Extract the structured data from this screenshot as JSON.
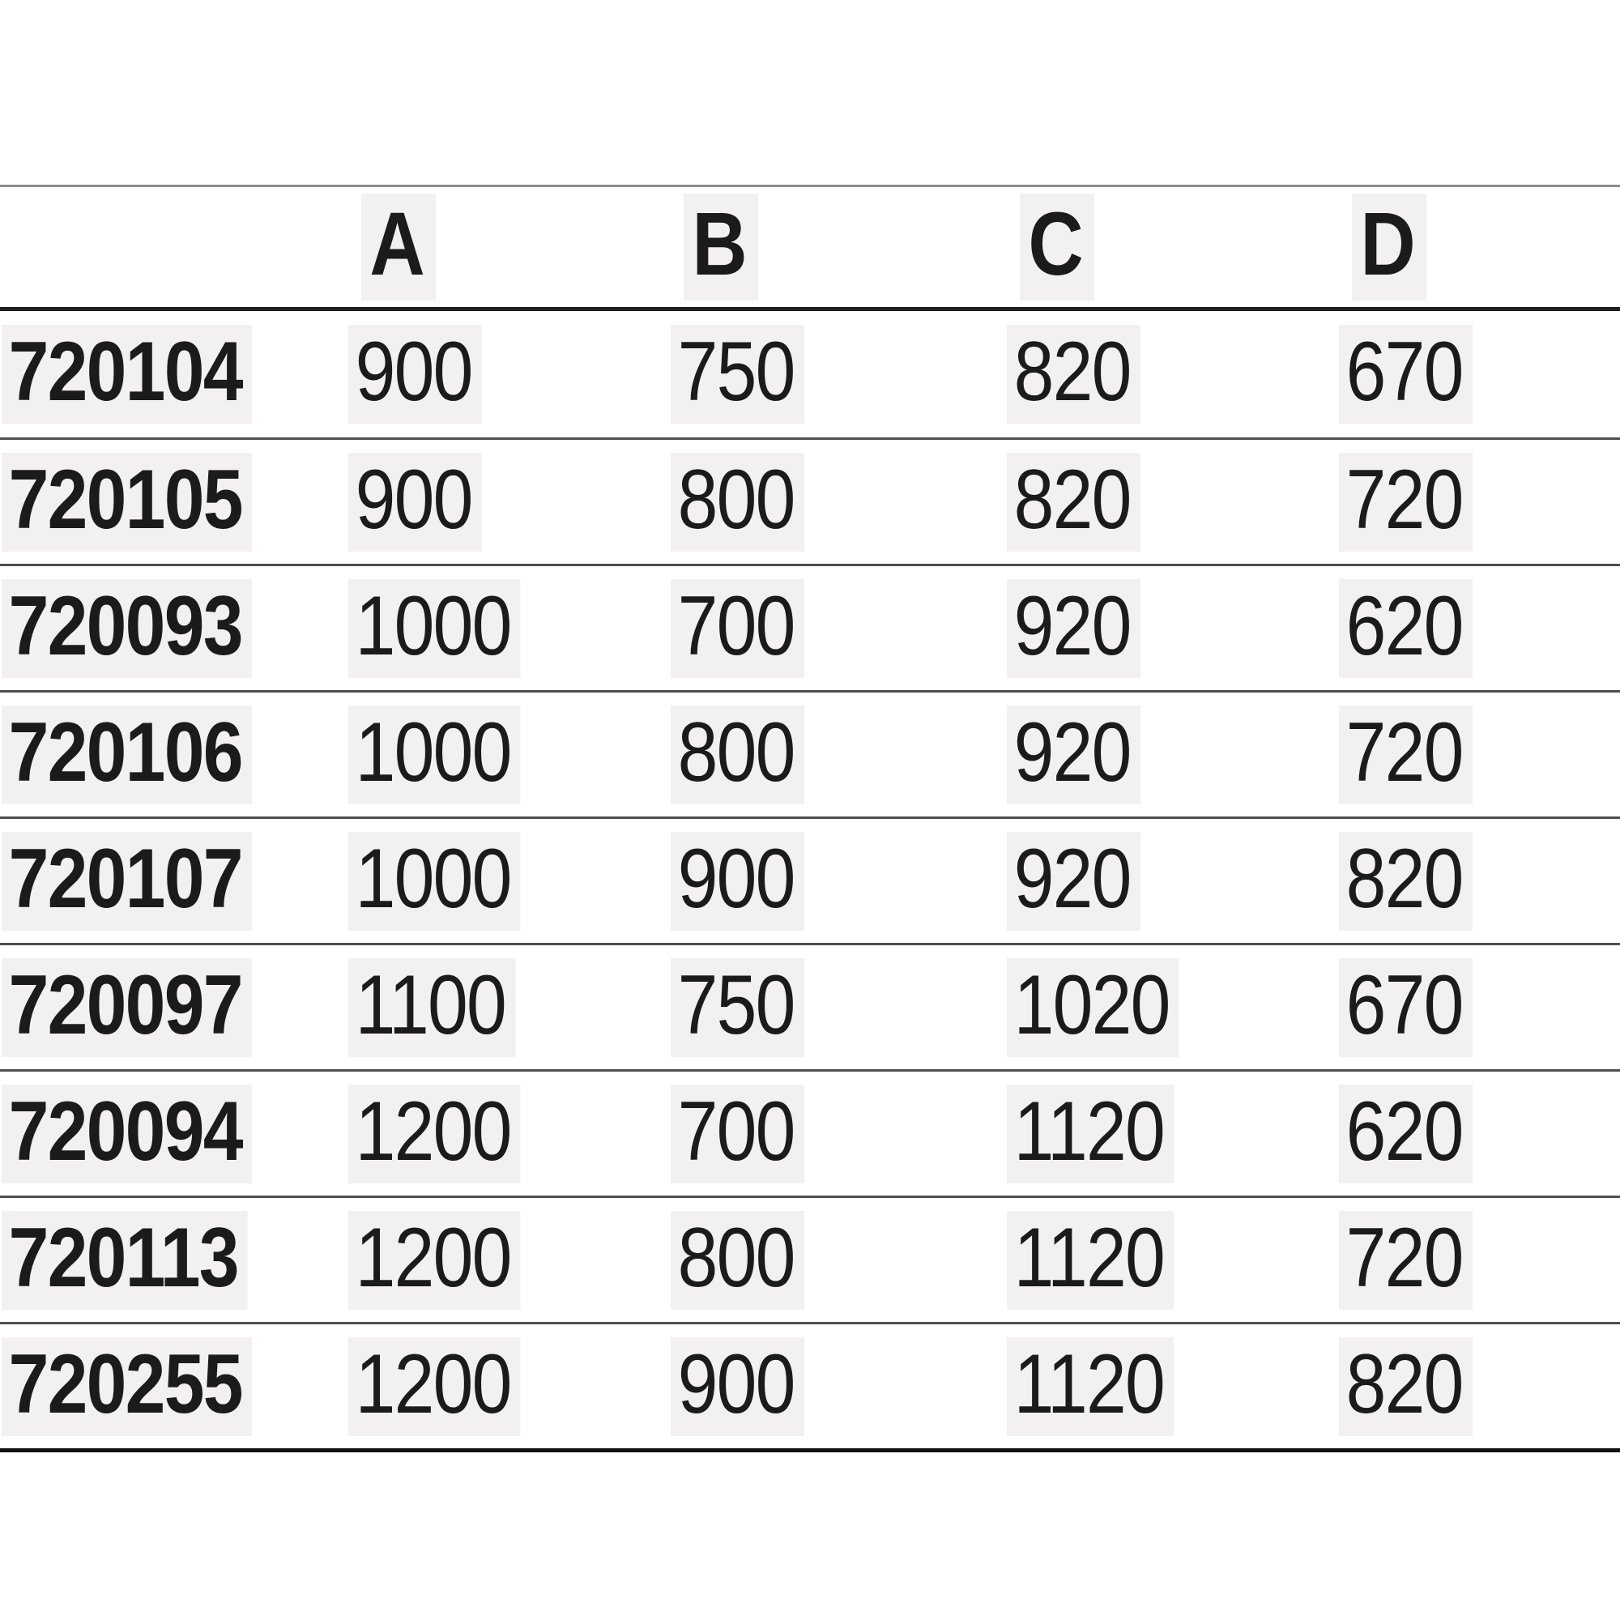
{
  "chart_data": {
    "type": "table",
    "title": "",
    "column_headers": [
      "A",
      "B",
      "C",
      "D"
    ],
    "row_header_label": "",
    "rows": [
      {
        "code": "720104",
        "values": [
          "900",
          "750",
          "820",
          "670"
        ]
      },
      {
        "code": "720105",
        "values": [
          "900",
          "800",
          "820",
          "720"
        ]
      },
      {
        "code": "720093",
        "values": [
          "1000",
          "700",
          "920",
          "620"
        ]
      },
      {
        "code": "720106",
        "values": [
          "1000",
          "800",
          "920",
          "720"
        ]
      },
      {
        "code": "720107",
        "values": [
          "1000",
          "900",
          "920",
          "820"
        ]
      },
      {
        "code": "720097",
        "values": [
          "1100",
          "750",
          "1020",
          "670"
        ]
      },
      {
        "code": "720094",
        "values": [
          "1200",
          "700",
          "1120",
          "620"
        ]
      },
      {
        "code": "720113",
        "values": [
          "1200",
          "800",
          "1120",
          "720"
        ]
      },
      {
        "code": "720255",
        "values": [
          "1200",
          "900",
          "1120",
          "820"
        ]
      }
    ],
    "layout": {
      "grid": "horizontal-rules-only",
      "legend": "none",
      "value_alignment": "left"
    }
  },
  "colors": {
    "background": "#ffffff",
    "text": "#1b1b1b",
    "top_rule": "#8a8a8a",
    "header_rule": "#1f1f1f",
    "row_rule": "#4f4f4f",
    "bottom_rule": "#0f0f0f",
    "text_halo": "#f2f1ef"
  }
}
